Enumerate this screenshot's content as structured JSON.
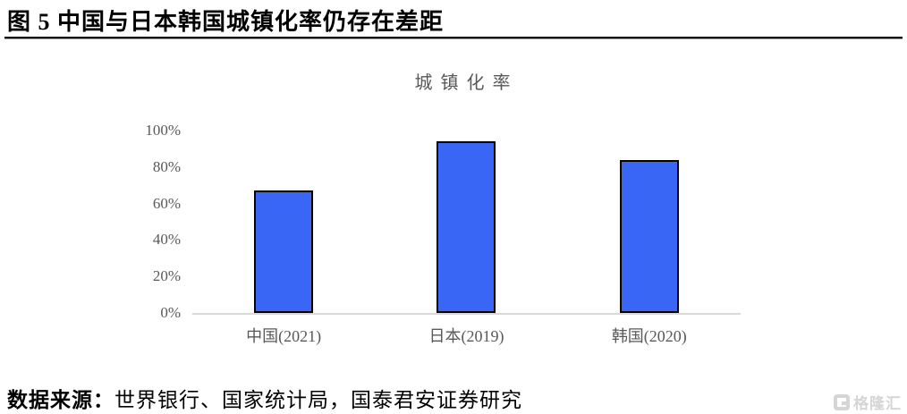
{
  "header": {
    "title": "图 5 中国与日本韩国城镇化率仍存在差距"
  },
  "chart_data": {
    "type": "bar",
    "title": "城镇化率",
    "categories": [
      "中国(2021)",
      "日本(2019)",
      "韩国(2020)"
    ],
    "values": [
      65,
      92,
      82
    ],
    "yticks": [
      "100%",
      "80%",
      "60%",
      "40%",
      "20%",
      "0%"
    ],
    "ylim": [
      0,
      100
    ],
    "grid": false,
    "legend": false,
    "bar_color": "#3a66f6",
    "bar_border_color": "#000000",
    "axis_line_color": "#d9d9d9",
    "axis_text_color": "#595959"
  },
  "footer": {
    "source_label": "数据来源：",
    "source_text": "世界银行、国家统计局，国泰君安证券研究",
    "logo_text": "格隆汇"
  }
}
